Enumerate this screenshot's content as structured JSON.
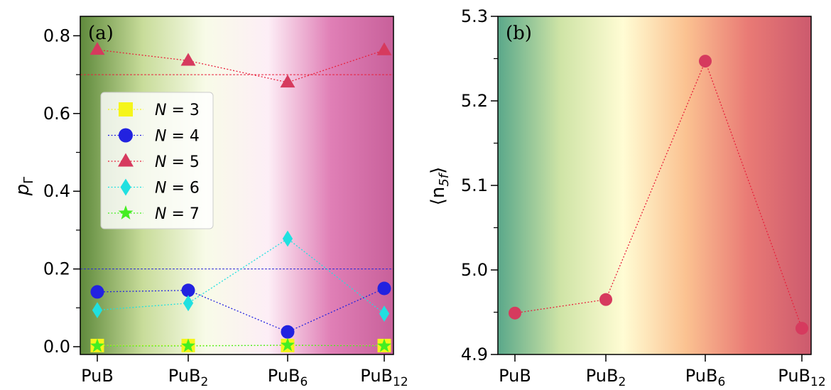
{
  "chart_data": [
    {
      "type": "line",
      "panel_label": "(a)",
      "ylabel": "p",
      "ylabel_sub": "Γ",
      "categories": [
        {
          "base": "PuB",
          "sub": ""
        },
        {
          "base": "PuB",
          "sub": "2"
        },
        {
          "base": "PuB",
          "sub": "6"
        },
        {
          "base": "PuB",
          "sub": "12"
        }
      ],
      "ylim": [
        -0.02,
        0.85
      ],
      "yticks": [
        0.0,
        0.2,
        0.4,
        0.6,
        0.8
      ],
      "ytick_labels": [
        "0.0",
        "0.2",
        "0.4",
        "0.6",
        "0.8"
      ],
      "yticks_minor": [
        0.1,
        0.3,
        0.5,
        0.7
      ],
      "hlines": [
        {
          "y": 0.7,
          "color": "#e8223d"
        },
        {
          "y": 0.2,
          "color": "#2a2ad6"
        }
      ],
      "background_gradient": [
        "#5f8a3c",
        "#c8dc9a",
        "#f8fbe8",
        "#fdeef6",
        "#e07fb6",
        "#c8609a"
      ],
      "legend_position": "center-left",
      "series": [
        {
          "name": "N = 3",
          "legend_var": "N",
          "legend_value": "3",
          "marker": "square",
          "color": "#f5f51a",
          "line_color": "#f5f51a",
          "values": [
            0.003,
            0.003,
            0.003,
            0.003
          ]
        },
        {
          "name": "N = 4",
          "legend_var": "N",
          "legend_value": "4",
          "marker": "circle",
          "color": "#2222e0",
          "line_color": "#2222e0",
          "values": [
            0.141,
            0.145,
            0.038,
            0.15
          ]
        },
        {
          "name": "N = 5",
          "legend_var": "N",
          "legend_value": "5",
          "marker": "triangle",
          "color": "#d63a5e",
          "line_color": "#e8223d",
          "values": [
            0.764,
            0.736,
            0.68,
            0.763
          ]
        },
        {
          "name": "N = 6",
          "legend_var": "N",
          "legend_value": "6",
          "marker": "diamond",
          "color": "#20e0e0",
          "line_color": "#20e0e0",
          "values": [
            0.094,
            0.112,
            0.278,
            0.085
          ]
        },
        {
          "name": "N = 7",
          "legend_var": "N",
          "legend_value": "7",
          "marker": "star",
          "color": "#44ee22",
          "line_color": "#44ee22",
          "values": [
            0.002,
            0.002,
            0.004,
            0.002
          ]
        }
      ]
    },
    {
      "type": "line",
      "panel_label": "(b)",
      "ylabel": "⟨n",
      "ylabel_sub": "5f",
      "ylabel_close": "⟩",
      "categories": [
        {
          "base": "PuB",
          "sub": ""
        },
        {
          "base": "PuB",
          "sub": "2"
        },
        {
          "base": "PuB",
          "sub": "6"
        },
        {
          "base": "PuB",
          "sub": "12"
        }
      ],
      "ylim": [
        4.9,
        5.3
      ],
      "yticks": [
        4.9,
        5.0,
        5.1,
        5.2,
        5.3
      ],
      "ytick_labels": [
        "4.9",
        "5.0",
        "5.1",
        "5.2",
        "5.3"
      ],
      "yticks_minor": [
        4.95,
        5.05,
        5.15,
        5.25
      ],
      "background_gradient": [
        "#5aa88a",
        "#cfe4a6",
        "#fffcd4",
        "#fbc291",
        "#e97a75",
        "#cc5a6e"
      ],
      "series": [
        {
          "marker": "circle",
          "color": "#d63a5e",
          "line_color": "#e8223d",
          "values": [
            4.949,
            4.965,
            5.247,
            4.931
          ]
        }
      ]
    }
  ]
}
